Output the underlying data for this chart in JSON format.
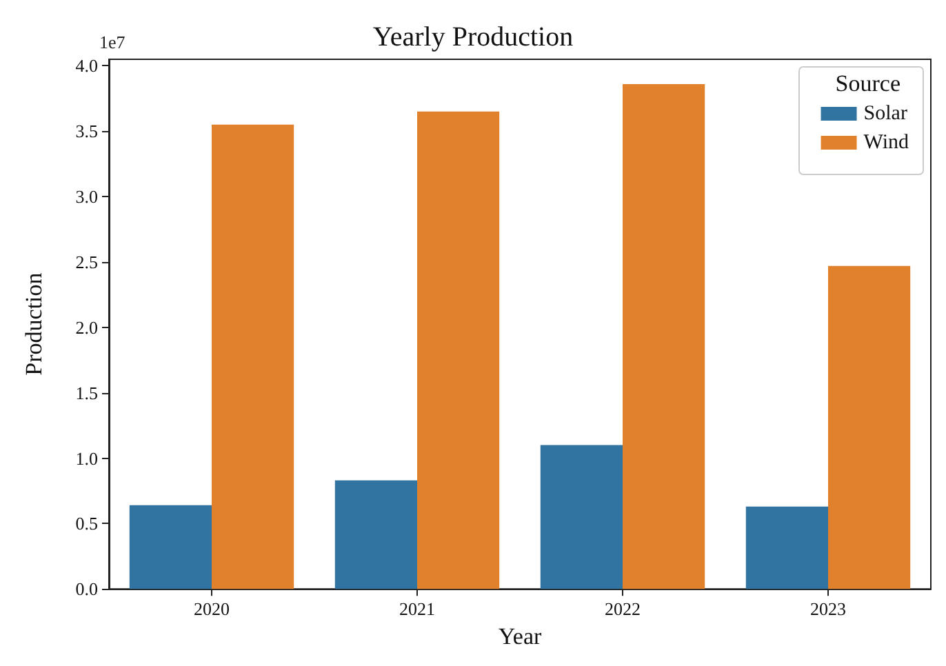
{
  "chart_data": {
    "type": "bar",
    "title": "Yearly Production",
    "xlabel": "Year",
    "ylabel": "Production",
    "legend_title": "Source",
    "categories": [
      "2020",
      "2021",
      "2022",
      "2023"
    ],
    "series": [
      {
        "name": "Solar",
        "color": "#3274a1",
        "values": [
          0.64,
          0.83,
          1.1,
          0.63
        ]
      },
      {
        "name": "Wind",
        "color": "#e1812c",
        "values": [
          3.55,
          3.65,
          3.86,
          2.47
        ]
      }
    ],
    "ylim": [
      0,
      4.05
    ],
    "yticks": [
      {
        "value": 0,
        "label": "0.0"
      },
      0.5,
      {
        "value": 1,
        "label": "1.0"
      },
      1.5,
      {
        "value": 2,
        "label": "2.0"
      },
      2.5,
      {
        "value": 3,
        "label": "3.0"
      },
      3.5,
      {
        "value": 4,
        "label": "4.0"
      }
    ],
    "annotations": [
      "1e7"
    ],
    "grid": false,
    "legend": "top right"
  }
}
